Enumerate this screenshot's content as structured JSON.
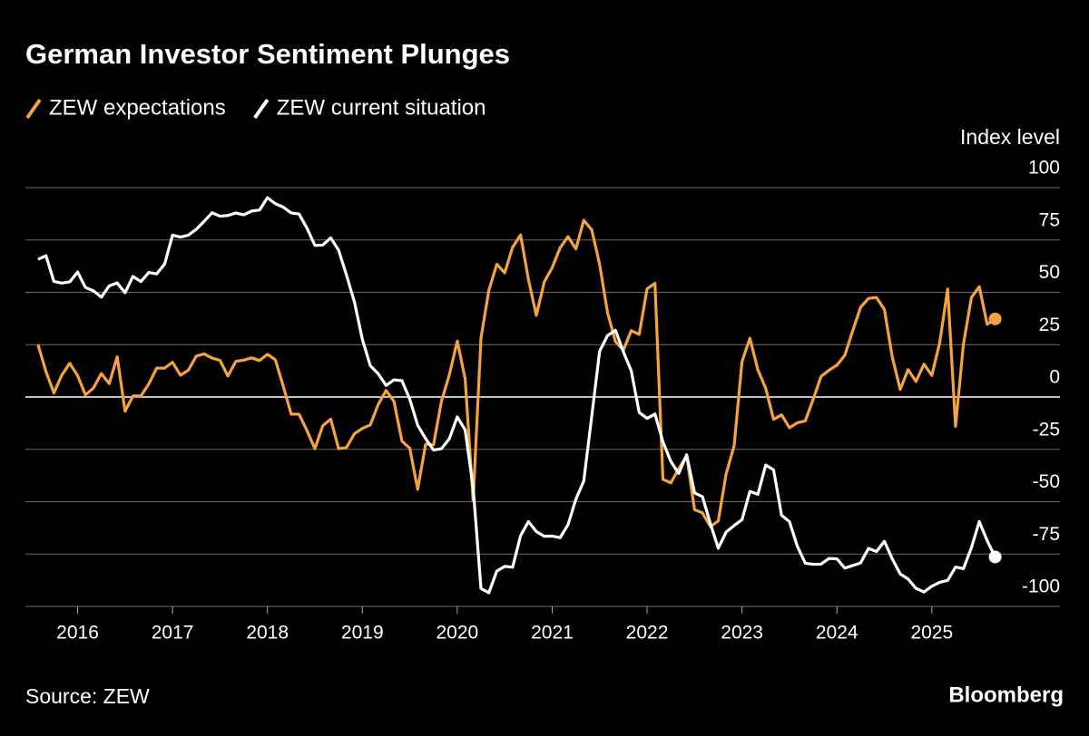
{
  "chart_data": {
    "type": "line",
    "title": "German Investor Sentiment Plunges",
    "y_label": "Index level",
    "source": "Source: ZEW",
    "brand": "Bloomberg",
    "xlim": [
      2015.45,
      2026.35
    ],
    "xticks": [
      2016,
      2017,
      2018,
      2019,
      2020,
      2021,
      2022,
      2023,
      2024,
      2025
    ],
    "ylim": [
      -100,
      100
    ],
    "yticks": [
      100,
      75,
      50,
      25,
      0,
      -25,
      -50,
      -75,
      -100
    ],
    "grid": true,
    "x": [
      2015.583,
      2015.667,
      2015.75,
      2015.833,
      2015.917,
      2016,
      2016.083,
      2016.167,
      2016.25,
      2016.333,
      2016.417,
      2016.5,
      2016.583,
      2016.667,
      2016.75,
      2016.833,
      2016.917,
      2017,
      2017.083,
      2017.167,
      2017.25,
      2017.333,
      2017.417,
      2017.5,
      2017.583,
      2017.667,
      2017.75,
      2017.833,
      2017.917,
      2018,
      2018.083,
      2018.167,
      2018.25,
      2018.333,
      2018.417,
      2018.5,
      2018.583,
      2018.667,
      2018.75,
      2018.833,
      2018.917,
      2019,
      2019.083,
      2019.167,
      2019.25,
      2019.333,
      2019.417,
      2019.5,
      2019.583,
      2019.667,
      2019.75,
      2019.833,
      2019.917,
      2020,
      2020.083,
      2020.167,
      2020.25,
      2020.333,
      2020.417,
      2020.5,
      2020.583,
      2020.667,
      2020.75,
      2020.833,
      2020.917,
      2021,
      2021.083,
      2021.167,
      2021.25,
      2021.333,
      2021.417,
      2021.5,
      2021.583,
      2021.667,
      2021.75,
      2021.833,
      2021.917,
      2022,
      2022.083,
      2022.167,
      2022.25,
      2022.333,
      2022.417,
      2022.5,
      2022.583,
      2022.667,
      2022.75,
      2022.833,
      2022.917,
      2023,
      2023.083,
      2023.167,
      2023.25,
      2023.333,
      2023.417,
      2023.5,
      2023.583,
      2023.667,
      2023.75,
      2023.833,
      2023.917,
      2024,
      2024.083,
      2024.167,
      2024.25,
      2024.333,
      2024.417,
      2024.5,
      2024.583,
      2024.667,
      2024.75,
      2024.833,
      2024.917,
      2025,
      2025.083,
      2025.167,
      2025.25,
      2025.333,
      2025.417,
      2025.5,
      2025.583,
      2025.667
    ],
    "series": [
      {
        "name": "ZEW expectations",
        "color": "#f4a33d",
        "values": [
          25.0,
          12.1,
          1.9,
          10.4,
          16.1,
          10.2,
          1.0,
          4.3,
          11.2,
          6.4,
          19.2,
          -6.8,
          0.5,
          0.5,
          6.2,
          13.8,
          13.8,
          16.6,
          10.4,
          12.8,
          19.5,
          20.6,
          18.6,
          17.5,
          10.0,
          17.0,
          17.6,
          18.7,
          17.4,
          20.4,
          17.8,
          5.1,
          -8.2,
          -8.2,
          -16.1,
          -24.7,
          -13.7,
          -10.6,
          -24.7,
          -24.1,
          -17.5,
          -15.0,
          -13.4,
          -3.6,
          3.1,
          -2.1,
          -21.1,
          -24.5,
          -44.1,
          -22.5,
          -22.8,
          -2.1,
          10.7,
          26.7,
          8.7,
          -49.5,
          28.2,
          51.0,
          63.4,
          59.3,
          71.5,
          77.4,
          56.1,
          39.0,
          55.0,
          61.8,
          71.2,
          76.6,
          70.7,
          84.4,
          79.8,
          63.3,
          40.4,
          26.5,
          22.3,
          31.7,
          29.9,
          51.7,
          54.3,
          -39.3,
          -41.0,
          -34.3,
          -28.0,
          -53.8,
          -55.3,
          -61.9,
          -59.2,
          -36.7,
          -23.3,
          16.9,
          28.1,
          13.0,
          4.1,
          -10.7,
          -8.5,
          -14.7,
          -12.3,
          -11.4,
          -1.1,
          9.8,
          12.8,
          15.2,
          19.9,
          31.7,
          42.9,
          47.1,
          47.5,
          41.8,
          19.2,
          3.6,
          13.1,
          7.4,
          15.7,
          10.3,
          26.0,
          51.6,
          -14.0,
          25.2,
          47.5,
          52.7,
          34.7,
          37.3
        ]
      },
      {
        "name": "ZEW current situation",
        "color": "#ffffff",
        "values": [
          65.7,
          67.5,
          55.2,
          54.4,
          55.0,
          59.7,
          52.3,
          50.7,
          47.7,
          53.1,
          54.5,
          49.8,
          57.6,
          55.1,
          59.5,
          58.8,
          63.5,
          77.3,
          76.4,
          77.3,
          80.1,
          83.9,
          88.0,
          86.4,
          86.7,
          87.9,
          87.0,
          88.8,
          89.3,
          95.2,
          92.3,
          90.7,
          87.9,
          87.4,
          80.6,
          72.4,
          72.6,
          76.0,
          70.1,
          58.2,
          45.3,
          27.6,
          15.0,
          11.1,
          5.5,
          8.2,
          7.8,
          -1.1,
          -13.5,
          -19.9,
          -25.3,
          -24.7,
          -19.9,
          -9.5,
          -15.7,
          -43.1,
          -91.5,
          -93.5,
          -83.1,
          -80.9,
          -81.3,
          -66.2,
          -59.5,
          -64.3,
          -66.5,
          -66.4,
          -67.2,
          -61.0,
          -48.8,
          -40.1,
          -9.1,
          21.9,
          29.3,
          31.9,
          21.6,
          12.5,
          -7.4,
          -10.2,
          -8.1,
          -21.4,
          -30.8,
          -36.5,
          -27.6,
          -45.8,
          -47.6,
          -60.5,
          -72.2,
          -64.5,
          -61.4,
          -58.6,
          -45.1,
          -46.5,
          -32.5,
          -34.8,
          -56.5,
          -59.5,
          -71.3,
          -79.4,
          -79.9,
          -79.8,
          -77.1,
          -77.3,
          -81.7,
          -80.5,
          -79.2,
          -72.3,
          -73.8,
          -68.9,
          -77.3,
          -84.5,
          -86.9,
          -91.4,
          -93.1,
          -90.4,
          -88.5,
          -87.6,
          -81.2,
          -82.0,
          -72.0,
          -59.5,
          -68.6,
          -76.4
        ]
      }
    ]
  }
}
